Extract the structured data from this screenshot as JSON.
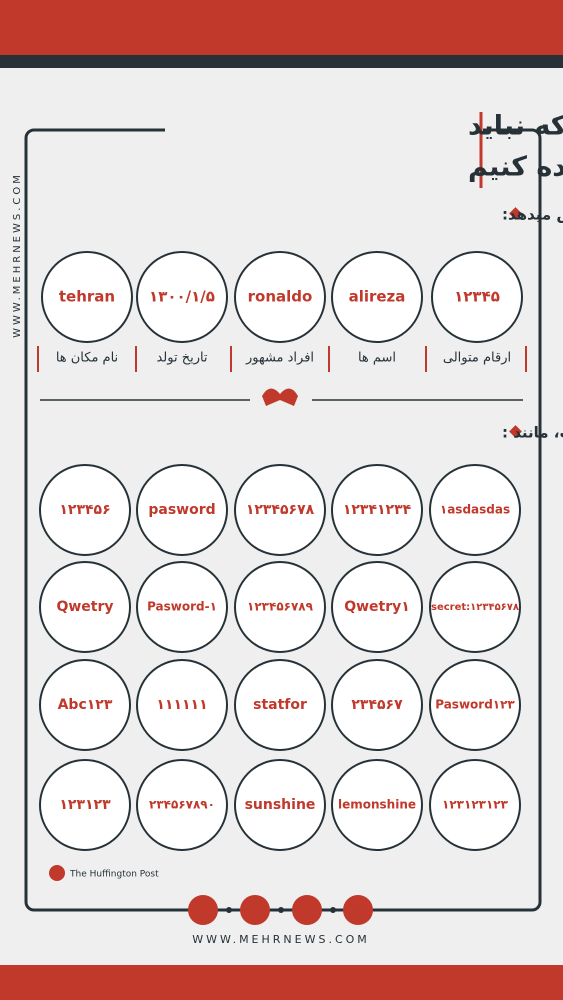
{
  "header": {
    "title": [
      "رمزعبورهایی که نباید",
      "استفاده کنیم"
    ]
  },
  "side_text": "WWW.MEHRNEWS.COM",
  "section1": {
    "heading": "وجود موارد زیر در رمزعبور امنیت آن را کاهش میدهد:",
    "items": [
      {
        "sample": "۱۲۳۴۵",
        "label": "ارقام متوالی"
      },
      {
        "sample": "alireza",
        "label": "اسم ها"
      },
      {
        "sample": "ronaldo",
        "label": "افراد مشهور"
      },
      {
        "sample": "۱۳۰۰/۱/۵",
        "label": "تاریخ تولد"
      },
      {
        "sample": "tehran",
        "label": "نام مکان ها"
      }
    ]
  },
  "section2": {
    "heading": "استفاده از رمزعبورهای پرتکرار بسیار خطرناک است، مانند :",
    "rows": [
      [
        "۱asdasdas",
        "۱۲۳۴۱۲۳۴",
        "۱۲۳۴۵۶۷۸",
        "pasword",
        "۱۲۳۴۵۶"
      ],
      [
        "secret:۱۲۳۴۵۶۷۸",
        "Qwetry۱",
        "۱۲۳۴۵۶۷۸۹",
        "Pasword-۱",
        "Qwetry"
      ],
      [
        "Pasword۱۲۳",
        "۲۳۴۵۶۷",
        "statfor",
        "۱۱۱۱۱۱",
        "Abc۱۲۳"
      ],
      [
        "۱۲۳۱۲۳۱۲۳",
        "lemonshine",
        "sunshine",
        "۲۳۴۵۶۷۸۹۰",
        "۱۲۳۱۲۳"
      ]
    ]
  },
  "source": "The Huffington Post",
  "footer_url": "WWW.MEHRNEWS.COM"
}
